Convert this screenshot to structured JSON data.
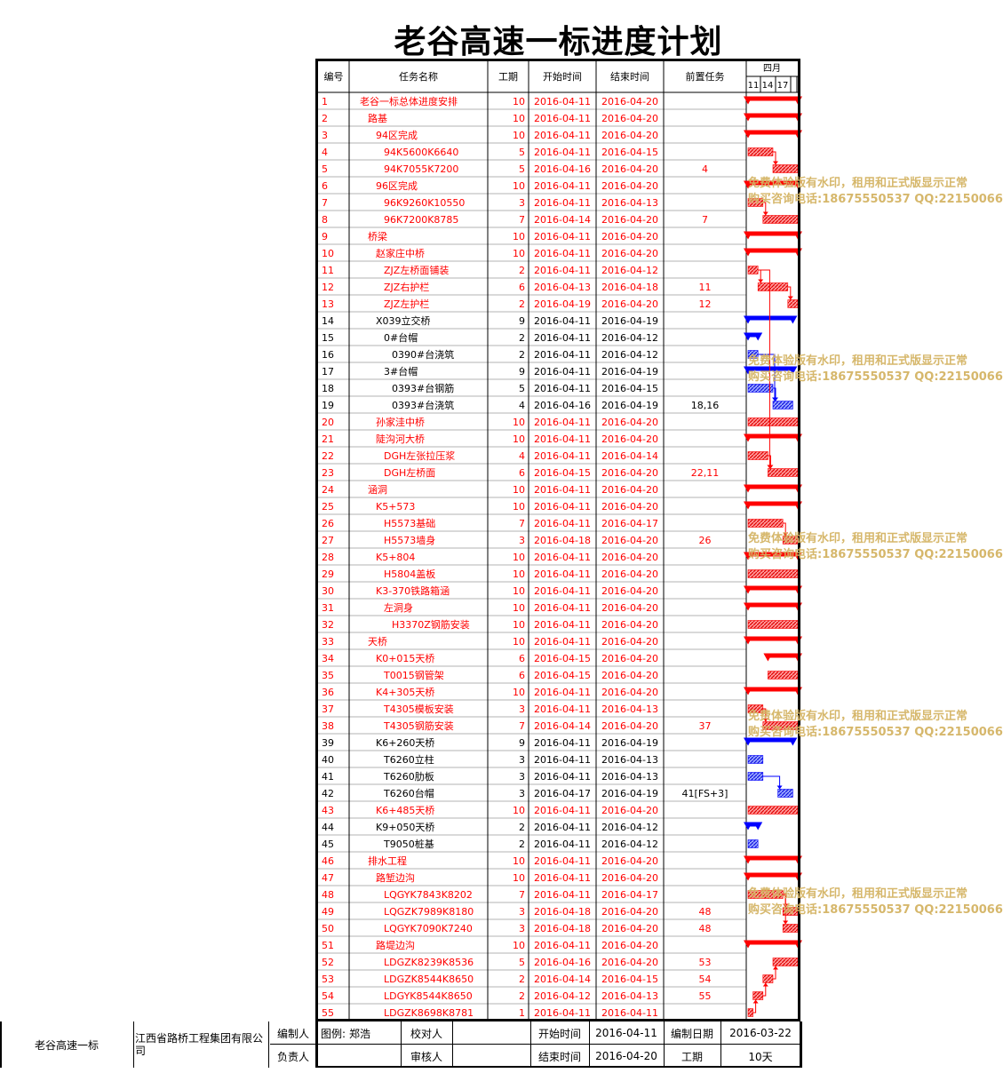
{
  "title": "老谷高速一标进度计划",
  "columns": {
    "id": "编号",
    "name": "任务名称",
    "duration": "工期",
    "start": "开始时间",
    "end": "结束时间",
    "pred": "前置任务",
    "month": "四月",
    "days": [
      "11",
      "14",
      "17"
    ]
  },
  "colors": {
    "critical": "#ff0000",
    "normal": "#0000ff",
    "text_normal": "#000000",
    "grid": "#000000",
    "watermark": "#d4b464"
  },
  "chart_data": {
    "type": "gantt",
    "x_axis": {
      "start": "2016-04-11",
      "end": "2016-04-20",
      "ticks": [
        "11",
        "14",
        "17"
      ],
      "month": "四月"
    },
    "tasks": [
      {
        "id": "1",
        "level": 0,
        "name": "老谷一标总体进度安排",
        "dur": "10",
        "start": "2016-04-11",
        "end": "2016-04-20",
        "pred": "",
        "crit": true,
        "sum": true
      },
      {
        "id": "2",
        "level": 1,
        "name": "路基",
        "dur": "10",
        "start": "2016-04-11",
        "end": "2016-04-20",
        "pred": "",
        "crit": true,
        "sum": true
      },
      {
        "id": "3",
        "level": 2,
        "name": "94区完成",
        "dur": "10",
        "start": "2016-04-11",
        "end": "2016-04-20",
        "pred": "",
        "crit": true,
        "sum": true
      },
      {
        "id": "4",
        "level": 3,
        "name": "94K5600K6640",
        "dur": "5",
        "start": "2016-04-11",
        "end": "2016-04-15",
        "pred": "",
        "crit": true,
        "sum": false
      },
      {
        "id": "5",
        "level": 3,
        "name": "94K7055K7200",
        "dur": "5",
        "start": "2016-04-16",
        "end": "2016-04-20",
        "pred": "4",
        "crit": true,
        "sum": false
      },
      {
        "id": "6",
        "level": 2,
        "name": "96区完成",
        "dur": "10",
        "start": "2016-04-11",
        "end": "2016-04-20",
        "pred": "",
        "crit": true,
        "sum": true
      },
      {
        "id": "7",
        "level": 3,
        "name": "96K9260K10550",
        "dur": "3",
        "start": "2016-04-11",
        "end": "2016-04-13",
        "pred": "",
        "crit": true,
        "sum": false
      },
      {
        "id": "8",
        "level": 3,
        "name": "96K7200K8785",
        "dur": "7",
        "start": "2016-04-14",
        "end": "2016-04-20",
        "pred": "7",
        "crit": true,
        "sum": false
      },
      {
        "id": "9",
        "level": 1,
        "name": "桥梁",
        "dur": "10",
        "start": "2016-04-11",
        "end": "2016-04-20",
        "pred": "",
        "crit": true,
        "sum": true
      },
      {
        "id": "10",
        "level": 2,
        "name": "赵家庄中桥",
        "dur": "10",
        "start": "2016-04-11",
        "end": "2016-04-20",
        "pred": "",
        "crit": true,
        "sum": true
      },
      {
        "id": "11",
        "level": 3,
        "name": "ZJZ左桥面铺装",
        "dur": "2",
        "start": "2016-04-11",
        "end": "2016-04-12",
        "pred": "",
        "crit": true,
        "sum": false
      },
      {
        "id": "12",
        "level": 3,
        "name": "ZJZ右护栏",
        "dur": "6",
        "start": "2016-04-13",
        "end": "2016-04-18",
        "pred": "11",
        "crit": true,
        "sum": false
      },
      {
        "id": "13",
        "level": 3,
        "name": "ZJZ左护栏",
        "dur": "2",
        "start": "2016-04-19",
        "end": "2016-04-20",
        "pred": "12",
        "crit": true,
        "sum": false
      },
      {
        "id": "14",
        "level": 2,
        "name": "X039立交桥",
        "dur": "9",
        "start": "2016-04-11",
        "end": "2016-04-19",
        "pred": "",
        "crit": false,
        "sum": true
      },
      {
        "id": "15",
        "level": 3,
        "name": "0#台帽",
        "dur": "2",
        "start": "2016-04-11",
        "end": "2016-04-12",
        "pred": "",
        "crit": false,
        "sum": true
      },
      {
        "id": "16",
        "level": 4,
        "name": "0390#台浇筑",
        "dur": "2",
        "start": "2016-04-11",
        "end": "2016-04-12",
        "pred": "",
        "crit": false,
        "sum": false
      },
      {
        "id": "17",
        "level": 3,
        "name": "3#台帽",
        "dur": "9",
        "start": "2016-04-11",
        "end": "2016-04-19",
        "pred": "",
        "crit": false,
        "sum": true
      },
      {
        "id": "18",
        "level": 4,
        "name": "0393#台钢筋",
        "dur": "5",
        "start": "2016-04-11",
        "end": "2016-04-15",
        "pred": "",
        "crit": false,
        "sum": false
      },
      {
        "id": "19",
        "level": 4,
        "name": "0393#台浇筑",
        "dur": "4",
        "start": "2016-04-16",
        "end": "2016-04-19",
        "pred": "18,16",
        "crit": false,
        "sum": false
      },
      {
        "id": "20",
        "level": 2,
        "name": "孙家洼中桥",
        "dur": "10",
        "start": "2016-04-11",
        "end": "2016-04-20",
        "pred": "",
        "crit": true,
        "sum": false
      },
      {
        "id": "21",
        "level": 2,
        "name": "陡沟河大桥",
        "dur": "10",
        "start": "2016-04-11",
        "end": "2016-04-20",
        "pred": "",
        "crit": true,
        "sum": true
      },
      {
        "id": "22",
        "level": 3,
        "name": "DGH左张拉压浆",
        "dur": "4",
        "start": "2016-04-11",
        "end": "2016-04-14",
        "pred": "",
        "crit": true,
        "sum": false
      },
      {
        "id": "23",
        "level": 3,
        "name": "DGH左桥面",
        "dur": "6",
        "start": "2016-04-15",
        "end": "2016-04-20",
        "pred": "22,11",
        "crit": true,
        "sum": false
      },
      {
        "id": "24",
        "level": 1,
        "name": "涵洞",
        "dur": "10",
        "start": "2016-04-11",
        "end": "2016-04-20",
        "pred": "",
        "crit": true,
        "sum": true
      },
      {
        "id": "25",
        "level": 2,
        "name": "K5+573",
        "dur": "10",
        "start": "2016-04-11",
        "end": "2016-04-20",
        "pred": "",
        "crit": true,
        "sum": true
      },
      {
        "id": "26",
        "level": 3,
        "name": "H5573基础",
        "dur": "7",
        "start": "2016-04-11",
        "end": "2016-04-17",
        "pred": "",
        "crit": true,
        "sum": false
      },
      {
        "id": "27",
        "level": 3,
        "name": "H5573墙身",
        "dur": "3",
        "start": "2016-04-18",
        "end": "2016-04-20",
        "pred": "26",
        "crit": true,
        "sum": false
      },
      {
        "id": "28",
        "level": 2,
        "name": "K5+804",
        "dur": "10",
        "start": "2016-04-11",
        "end": "2016-04-20",
        "pred": "",
        "crit": true,
        "sum": true
      },
      {
        "id": "29",
        "level": 3,
        "name": "H5804盖板",
        "dur": "10",
        "start": "2016-04-11",
        "end": "2016-04-20",
        "pred": "",
        "crit": true,
        "sum": false
      },
      {
        "id": "30",
        "level": 2,
        "name": "K3-370铁路箱涵",
        "dur": "10",
        "start": "2016-04-11",
        "end": "2016-04-20",
        "pred": "",
        "crit": true,
        "sum": true
      },
      {
        "id": "31",
        "level": 3,
        "name": "左洞身",
        "dur": "10",
        "start": "2016-04-11",
        "end": "2016-04-20",
        "pred": "",
        "crit": true,
        "sum": true
      },
      {
        "id": "32",
        "level": 4,
        "name": "H3370Z钢筋安装",
        "dur": "10",
        "start": "2016-04-11",
        "end": "2016-04-20",
        "pred": "",
        "crit": true,
        "sum": false
      },
      {
        "id": "33",
        "level": 1,
        "name": "天桥",
        "dur": "10",
        "start": "2016-04-11",
        "end": "2016-04-20",
        "pred": "",
        "crit": true,
        "sum": true
      },
      {
        "id": "34",
        "level": 2,
        "name": "K0+015天桥",
        "dur": "6",
        "start": "2016-04-15",
        "end": "2016-04-20",
        "pred": "",
        "crit": true,
        "sum": true
      },
      {
        "id": "35",
        "level": 3,
        "name": "T0015钢管架",
        "dur": "6",
        "start": "2016-04-15",
        "end": "2016-04-20",
        "pred": "",
        "crit": true,
        "sum": false
      },
      {
        "id": "36",
        "level": 2,
        "name": "K4+305天桥",
        "dur": "10",
        "start": "2016-04-11",
        "end": "2016-04-20",
        "pred": "",
        "crit": true,
        "sum": true
      },
      {
        "id": "37",
        "level": 3,
        "name": "T4305模板安装",
        "dur": "3",
        "start": "2016-04-11",
        "end": "2016-04-13",
        "pred": "",
        "crit": true,
        "sum": false
      },
      {
        "id": "38",
        "level": 3,
        "name": "T4305钢筋安装",
        "dur": "7",
        "start": "2016-04-14",
        "end": "2016-04-20",
        "pred": "37",
        "crit": true,
        "sum": false
      },
      {
        "id": "39",
        "level": 2,
        "name": "K6+260天桥",
        "dur": "9",
        "start": "2016-04-11",
        "end": "2016-04-19",
        "pred": "",
        "crit": false,
        "sum": true
      },
      {
        "id": "40",
        "level": 3,
        "name": "T6260立柱",
        "dur": "3",
        "start": "2016-04-11",
        "end": "2016-04-13",
        "pred": "",
        "crit": false,
        "sum": false
      },
      {
        "id": "41",
        "level": 3,
        "name": "T6260肋板",
        "dur": "3",
        "start": "2016-04-11",
        "end": "2016-04-13",
        "pred": "",
        "crit": false,
        "sum": false
      },
      {
        "id": "42",
        "level": 3,
        "name": "T6260台帽",
        "dur": "3",
        "start": "2016-04-17",
        "end": "2016-04-19",
        "pred": "41[FS+3]",
        "crit": false,
        "sum": false
      },
      {
        "id": "43",
        "level": 2,
        "name": "K6+485天桥",
        "dur": "10",
        "start": "2016-04-11",
        "end": "2016-04-20",
        "pred": "",
        "crit": true,
        "sum": false
      },
      {
        "id": "44",
        "level": 2,
        "name": "K9+050天桥",
        "dur": "2",
        "start": "2016-04-11",
        "end": "2016-04-12",
        "pred": "",
        "crit": false,
        "sum": true
      },
      {
        "id": "45",
        "level": 3,
        "name": "T9050桩基",
        "dur": "2",
        "start": "2016-04-11",
        "end": "2016-04-12",
        "pred": "",
        "crit": false,
        "sum": false
      },
      {
        "id": "46",
        "level": 1,
        "name": "排水工程",
        "dur": "10",
        "start": "2016-04-11",
        "end": "2016-04-20",
        "pred": "",
        "crit": true,
        "sum": true
      },
      {
        "id": "47",
        "level": 2,
        "name": "路堑边沟",
        "dur": "10",
        "start": "2016-04-11",
        "end": "2016-04-20",
        "pred": "",
        "crit": true,
        "sum": true
      },
      {
        "id": "48",
        "level": 3,
        "name": "LQGYK7843K8202",
        "dur": "7",
        "start": "2016-04-11",
        "end": "2016-04-17",
        "pred": "",
        "crit": true,
        "sum": false
      },
      {
        "id": "49",
        "level": 3,
        "name": "LQGZK7989K8180",
        "dur": "3",
        "start": "2016-04-18",
        "end": "2016-04-20",
        "pred": "48",
        "crit": true,
        "sum": false
      },
      {
        "id": "50",
        "level": 3,
        "name": "LQGYK7090K7240",
        "dur": "3",
        "start": "2016-04-18",
        "end": "2016-04-20",
        "pred": "48",
        "crit": true,
        "sum": false
      },
      {
        "id": "51",
        "level": 2,
        "name": "路堤边沟",
        "dur": "10",
        "start": "2016-04-11",
        "end": "2016-04-20",
        "pred": "",
        "crit": true,
        "sum": true
      },
      {
        "id": "52",
        "level": 3,
        "name": "LDGZK8239K8536",
        "dur": "5",
        "start": "2016-04-16",
        "end": "2016-04-20",
        "pred": "53",
        "crit": true,
        "sum": false
      },
      {
        "id": "53",
        "level": 3,
        "name": "LDGZK8544K8650",
        "dur": "2",
        "start": "2016-04-14",
        "end": "2016-04-15",
        "pred": "54",
        "crit": true,
        "sum": false
      },
      {
        "id": "54",
        "level": 3,
        "name": "LDGYK8544K8650",
        "dur": "2",
        "start": "2016-04-12",
        "end": "2016-04-13",
        "pred": "55",
        "crit": true,
        "sum": false
      },
      {
        "id": "55",
        "level": 3,
        "name": "LDGZK8698K8781",
        "dur": "1",
        "start": "2016-04-11",
        "end": "2016-04-11",
        "pred": "",
        "crit": true,
        "sum": false
      }
    ]
  },
  "watermark": {
    "line1": "免费体验版有水印，租用和正式版显示正常",
    "line2": "购买咨询电话:18675550537 QQ:22150066"
  },
  "footer": {
    "project": "老谷高速一标",
    "company": "江西省路桥工程集团有限公司",
    "compiler_label": "编制人",
    "responsible_label": "负责人",
    "legend_label": "图例:",
    "legend_value": "郑浩",
    "checker_label": "校对人",
    "reviewer_label": "审核人",
    "start_label": "开始时间",
    "start_value": "2016-04-11",
    "end_label": "结束时间",
    "end_value": "2016-04-20",
    "date_label": "编制日期",
    "date_value": "2016-03-22",
    "duration_label": "工期",
    "duration_value": "10天"
  }
}
